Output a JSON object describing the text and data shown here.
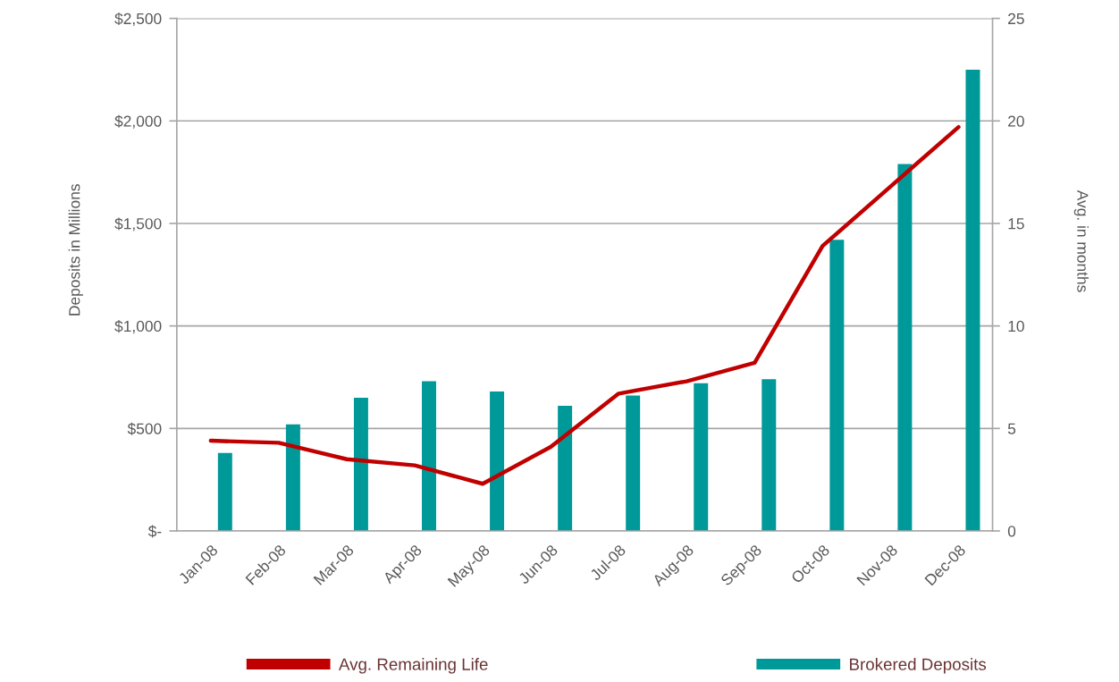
{
  "chart_data": {
    "type": "bar",
    "categories": [
      "Jan-08",
      "Feb-08",
      "Mar-08",
      "Apr-08",
      "May-08",
      "Jun-08",
      "Jul-08",
      "Aug-08",
      "Sep-08",
      "Oct-08",
      "Nov-08",
      "Dec-08"
    ],
    "ylabel": "Deposits in Millions",
    "y2label": "Avg. in months",
    "ylim": [
      0,
      2500
    ],
    "yticks": [
      {
        "value": 0,
        "label": "$-"
      },
      {
        "value": 500,
        "label": "$500"
      },
      {
        "value": 1000,
        "label": "$1,000"
      },
      {
        "value": 1500,
        "label": "$1,500"
      },
      {
        "value": 2000,
        "label": "$2,000"
      },
      {
        "value": 2500,
        "label": "$2,500"
      }
    ],
    "y2lim": [
      0,
      25
    ],
    "y2ticks": [
      0,
      5,
      10,
      15,
      20,
      25
    ],
    "grid": "y",
    "legend": "bottom",
    "series": [
      {
        "name": "Avg. Remaining Life",
        "type": "line",
        "axis": "y2",
        "color": "#c00000",
        "values": [
          4.4,
          4.3,
          3.5,
          3.2,
          2.3,
          4.1,
          6.7,
          7.3,
          8.2,
          13.9,
          16.8,
          19.7
        ]
      },
      {
        "name": "Brokered Deposits",
        "color": "#009999",
        "values": [
          380,
          520,
          650,
          730,
          680,
          610,
          660,
          720,
          740,
          1420,
          1790,
          2250
        ]
      }
    ]
  }
}
